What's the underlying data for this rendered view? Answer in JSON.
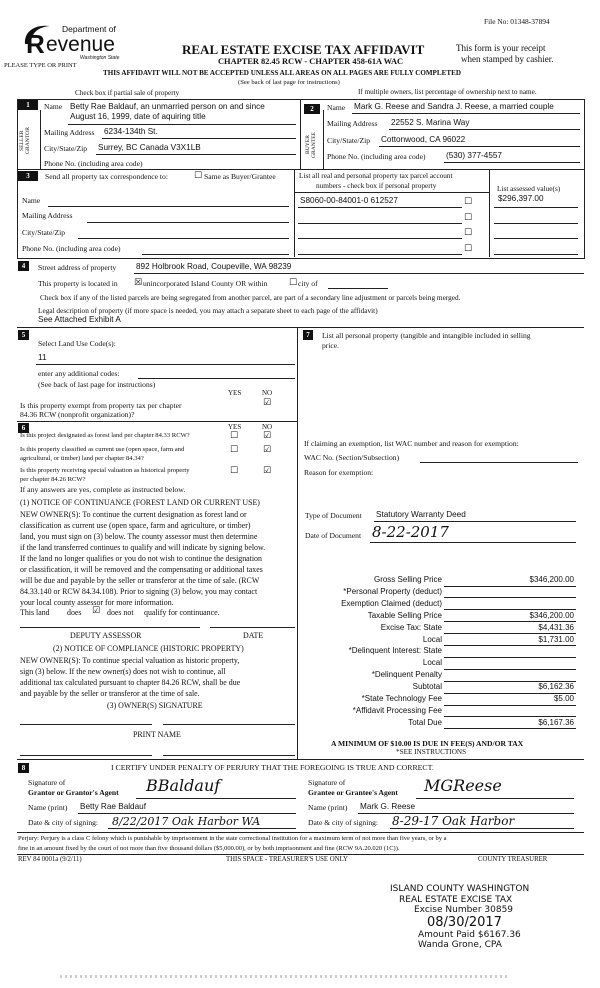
{
  "header": {
    "file_no": "File No: 01348-37894",
    "logo_dept": "Department of",
    "logo_word": "evenue",
    "logo_letter": "R",
    "logo_state": "Washington State",
    "please_type": "PLEASE TYPE OR PRINT",
    "title": "REAL ESTATE EXCISE TAX AFFIDAVIT",
    "chapter": "CHAPTER 82.45 RCW - CHAPTER 458-61A WAC",
    "receipt_line1": "This form is your receipt",
    "receipt_line2": "when stamped by cashier.",
    "warning": "THIS AFFIDAVIT WILL NOT BE ACCEPTED UNLESS ALL AREAS ON ALL PAGES ARE FULLY COMPLETED",
    "see_back": "(See back of last page for instructions)",
    "partial_sale": "Check box if partial sale of property",
    "multiple_owners": "If multiple owners, list percentage of ownership next to name."
  },
  "seller": {
    "num": "1",
    "side_label": "SELLER GRANTOR",
    "name_label": "Name",
    "name_line1": "Betty Rae Baldauf, an unmarried person on and since",
    "name_line2": "August 16, 1999, date of aquiring title",
    "mailing_label": "Mailing Address",
    "mailing": "6234-134th St.",
    "city_label": "City/State/Zip",
    "city": "Surrey, BC Canada V3X1LB",
    "phone_label": "Phone No. (including area code)",
    "phone": ""
  },
  "buyer": {
    "num": "2",
    "side_label": "BUYER GRANTEE",
    "name_label": "Name",
    "name": "Mark G. Reese and Sandra J. Reese, a married couple",
    "mailing_label": "Mailing Address",
    "mailing": "22552 S. Marina Way",
    "city_label": "City/State/Zip",
    "city": "Cottonwood, CA 96022",
    "phone_label": "Phone No. (including area code)",
    "phone": "(530) 377-4557"
  },
  "correspondence": {
    "num": "3",
    "heading": "Send all property tax correspondence to:",
    "same_as": "Same as Buyer/Grantee",
    "name_label": "Name",
    "mailing_label": "Mailing Address",
    "city_label": "City/State/Zip",
    "phone_label": "Phone No. (including area code)",
    "parcel_header1": "List all real and personal property tax parcel account",
    "parcel_header2": "numbers - check box if personal property",
    "value_header": "List assessed value(s)",
    "parcels": [
      {
        "number": "S8060-00-84001-0   612527",
        "personal": false,
        "value": "$296,397.00"
      },
      {
        "number": "",
        "personal": false,
        "value": ""
      },
      {
        "number": "",
        "personal": false,
        "value": ""
      },
      {
        "number": "",
        "personal": false,
        "value": ""
      }
    ]
  },
  "property": {
    "num": "4",
    "street_label": "Street address of property",
    "street": "892 Holbrook Road, Coupeville, WA 98239",
    "located_pre": "This property is located in",
    "located_unincorporated": "unincorporated Island County OR within",
    "located_city": "city of",
    "unincorporated_checked": true,
    "segregated_text": "Check box if any of the listed parcels are being segregated from another parcel, are part of a secondary line adjustment or parcels being merged.",
    "legal_label": "Legal description of property (if more space is needed, you may attach a separate sheet to each page of the affidavit)",
    "legal": "See Attached Exhibit A"
  },
  "land_use": {
    "num": "5",
    "label": "Select Land Use Code(s):",
    "code": "11",
    "additional_label": "enter any additional codes:",
    "see_back": "(See back of last page for instructions)",
    "yes": "YES",
    "no": "NO",
    "exempt_q1": "Is this property exempt from property tax per chapter",
    "exempt_q2": "84.36 RCW (nonprofit organization)?",
    "exempt_answer": "NO"
  },
  "section6": {
    "num": "6",
    "yes": "YES",
    "no": "NO",
    "questions": [
      {
        "l1": "Is this project designated as forest land per chapter 84.33 RCW?",
        "l2": "",
        "answer": "NO"
      },
      {
        "l1": "Is this property classified as current use (open space, farm and",
        "l2": "agricultural, or timber) land per chapter 84.34?",
        "answer": "NO"
      },
      {
        "l1": "Is this property receiving special valuation as historical property",
        "l2": "per chapter 84.26 RCW?",
        "answer": "NO"
      }
    ],
    "if_yes": "If any answers are yes, complete as instructed below.",
    "notice1_title": "(1) NOTICE OF CONTINUANCE (FOREST LAND OR CURRENT USE)",
    "notice1_lines": [
      "NEW OWNER(S):  To continue the current designation as forest land or",
      "classification as current use (open space, farm and agriculture, or timber)",
      "land, you must sign on (3) below.  The county assessor must then determine",
      "if the land transferred continues to qualify and will indicate by signing below.",
      "If the land no longer qualifies or you do not wish to continue the designation",
      "or classification, it will be removed and the compensating or additional taxes",
      "will be due and payable by the seller or transferor at the time of sale.  (RCW",
      "84.33.140 or RCW 84.34.108).  Prior to signing (3) below, you may contact",
      "your local county assessor for more information."
    ],
    "this_land": "This land",
    "does": "does",
    "does_not": "does not",
    "qualify": "qualify for continuance.",
    "does_not_checked": true,
    "deputy_assessor": "DEPUTY ASSESSOR",
    "date": "DATE",
    "notice2_title": "(2) NOTICE OF COMPLIANCE (HISTORIC PROPERTY)",
    "notice2_lines": [
      "NEW OWNER(S):  To continue special valuation as historic property,",
      "sign (3) below.  If the new owner(s) does not wish to continue, all",
      "additional tax calculated pursuant to chapter 84.26 RCW, shall be due",
      "and payable by the seller or transferor at the time of sale."
    ],
    "owner_signature": "(3) OWNER(S) SIGNATURE",
    "print_name": "PRINT NAME"
  },
  "section7": {
    "num": "7",
    "personal_l1": "List all personal property (tangible and intangible included in selling",
    "personal_l2": "price.",
    "exemption_label": "If claiming an exemption, list WAC number and reason for exemption:",
    "wac_label": "WAC No. (Section/Subsection)",
    "reason_label": "Reason for exemption:",
    "doc_type_label": "Type of Document",
    "doc_type": "Statutory Warranty Deed",
    "doc_date_label": "Date of Document",
    "doc_date": "8-22-2017",
    "fees": [
      {
        "label": "Gross Selling Price",
        "value": "$346,200.00"
      },
      {
        "label": "*Personal Property (deduct)",
        "value": ""
      },
      {
        "label": "Exemption Claimed (deduct)",
        "value": ""
      },
      {
        "label": "Taxable Selling Price",
        "value": "$346,200.00"
      },
      {
        "label": "Excise Tax:  State",
        "value": "$4,431.36"
      },
      {
        "label": "Local",
        "value": "$1,731.00"
      },
      {
        "label": "*Delinquent Interest:  State",
        "value": ""
      },
      {
        "label": "Local",
        "value": ""
      },
      {
        "label": "*Delinquent Penalty",
        "value": ""
      },
      {
        "label": "Subtotal",
        "value": "$6,162.36"
      },
      {
        "label": "*State Technology Fee",
        "value": "$5.00"
      },
      {
        "label": "*Affidavit Processing Fee",
        "value": ""
      },
      {
        "label": "Total Due",
        "value": "$6,167.36"
      }
    ],
    "minimum": "A MINIMUM OF $10.00 IS DUE IN FEE(S) AND/OR TAX",
    "see_instructions": "*SEE INSTRUCTIONS"
  },
  "section8": {
    "num": "8",
    "certify": "I CERTIFY UNDER PENALTY OF PERJURY THAT THE FOREGOING IS TRUE AND CORRECT.",
    "grantor_sig_l1": "Signature of",
    "grantor_sig_l2": "Grantor or Grantor's Agent",
    "grantor_signature": "BBaldauf",
    "grantor_name_label": "Name (print)",
    "grantor_name": "Betty Rae Baldauf",
    "grantor_date_label": "Date & city of signing:",
    "grantor_date": "8/22/2017  Oak Harbor  WA",
    "grantee_sig_l1": "Signature of",
    "grantee_sig_l2": "Grantee or Grantee's Agent",
    "grantee_signature": "MGReese",
    "grantee_name_label": "Name (print)",
    "grantee_name": "Mark G. Reese",
    "grantee_date_label": "Date & city of signing:",
    "grantee_date": "8-29-17 Oak Harbor",
    "perjury_l1": "Perjury:  Perjury is a class C felony which is punishable by imprisonment in the state correctional institution for a maximum term of not more than five years, or by a",
    "perjury_l2": "fine in an amount fixed by the court of not more than five thousand dollars ($5,000.00), or by both imprisonment and fine (RCW 9A.20.020 (1C)).",
    "rev": "REV 84 0001a (9/2/11)",
    "treasurer_use": "THIS SPACE - TREASURER'S USE ONLY",
    "county_treasurer": "COUNTY TREASURER"
  },
  "stamp": {
    "line1": "ISLAND COUNTY WASHINGTON",
    "line2": "REAL ESTATE EXCISE TAX",
    "line3": "Excise Number 30859",
    "date": "08/30/2017",
    "amount": "Amount Paid $6167.36",
    "official": "Wanda Grone, CPA"
  }
}
